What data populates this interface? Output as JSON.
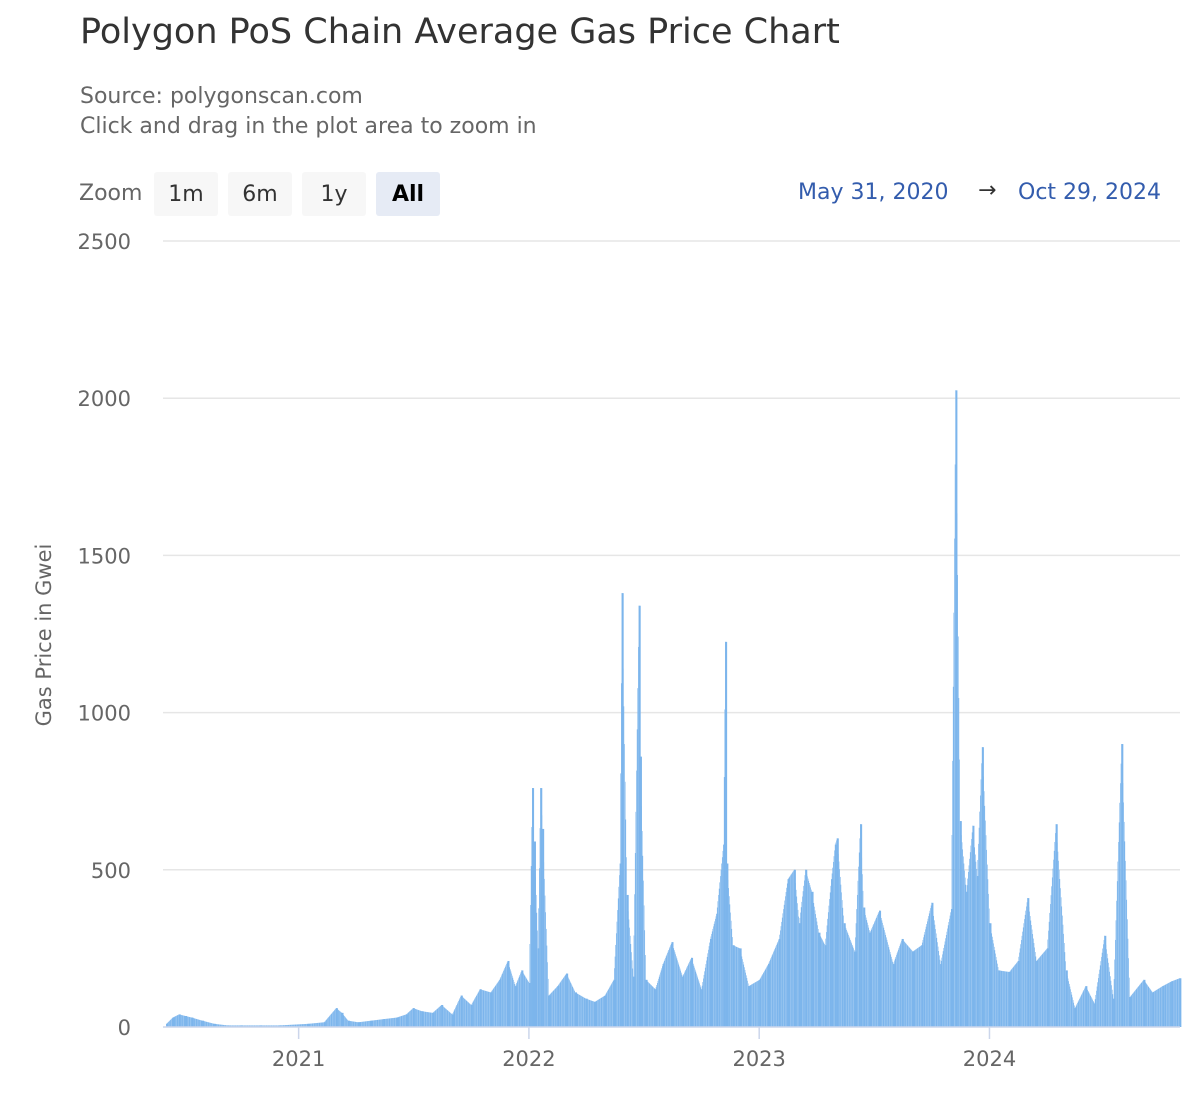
{
  "title": "Polygon PoS Chain Average Gas Price Chart",
  "subtitle": {
    "source": "Source: polygonscan.com",
    "hint": "Click and drag in the plot area to zoom in"
  },
  "range_selector": {
    "label": "Zoom",
    "buttons": [
      "1m",
      "6m",
      "1y",
      "All"
    ],
    "selected": "All",
    "from": "May 31, 2020",
    "arrow": "→",
    "to": "Oct 29, 2024"
  },
  "colors": {
    "bar": "#7cb5ec",
    "grid": "#e6e6e6",
    "axis_text": "#666666",
    "range_text": "#335cad"
  },
  "chart_data": {
    "type": "bar",
    "title": "Polygon PoS Chain Average Gas Price Chart",
    "ylabel": "Gas Price in Gwei",
    "xlabel": "",
    "ylim": [
      0,
      2500
    ],
    "xlim": [
      "2020-05-31",
      "2024-10-29"
    ],
    "y_ticks": [
      0,
      500,
      1000,
      1500,
      2000,
      2500
    ],
    "x_ticks": [
      {
        "label": "2021",
        "date": "2021-01-01"
      },
      {
        "label": "2022",
        "date": "2022-01-01"
      },
      {
        "label": "2023",
        "date": "2023-01-01"
      },
      {
        "label": "2024",
        "date": "2024-01-01"
      }
    ],
    "grid": true,
    "legend": "none",
    "series": [
      {
        "values_note": "daily average gas price",
        "points": [
          [
            "2020-06-05",
            10
          ],
          [
            "2020-06-15",
            30
          ],
          [
            "2020-06-25",
            40
          ],
          [
            "2020-07-05",
            35
          ],
          [
            "2020-07-15",
            30
          ],
          [
            "2020-08-01",
            20
          ],
          [
            "2020-08-20",
            10
          ],
          [
            "2020-09-10",
            5
          ],
          [
            "2020-10-01",
            5
          ],
          [
            "2020-11-01",
            5
          ],
          [
            "2020-12-01",
            5
          ],
          [
            "2021-01-15",
            10
          ],
          [
            "2021-02-10",
            15
          ],
          [
            "2021-03-01",
            60
          ],
          [
            "2021-03-10",
            45
          ],
          [
            "2021-03-20",
            20
          ],
          [
            "2021-04-05",
            15
          ],
          [
            "2021-04-25",
            20
          ],
          [
            "2021-05-15",
            25
          ],
          [
            "2021-06-05",
            30
          ],
          [
            "2021-06-20",
            40
          ],
          [
            "2021-07-01",
            60
          ],
          [
            "2021-07-15",
            50
          ],
          [
            "2021-08-01",
            45
          ],
          [
            "2021-08-15",
            70
          ],
          [
            "2021-09-01",
            40
          ],
          [
            "2021-09-15",
            100
          ],
          [
            "2021-10-01",
            70
          ],
          [
            "2021-10-15",
            120
          ],
          [
            "2021-11-01",
            110
          ],
          [
            "2021-11-15",
            150
          ],
          [
            "2021-11-28",
            210
          ],
          [
            "2021-12-10",
            130
          ],
          [
            "2021-12-20",
            180
          ],
          [
            "2022-01-01",
            140
          ],
          [
            "2022-01-06",
            760
          ],
          [
            "2022-01-09",
            590
          ],
          [
            "2022-01-15",
            250
          ],
          [
            "2022-01-19",
            760
          ],
          [
            "2022-01-22",
            630
          ],
          [
            "2022-02-01",
            100
          ],
          [
            "2022-02-15",
            130
          ],
          [
            "2022-03-01",
            170
          ],
          [
            "2022-03-15",
            110
          ],
          [
            "2022-04-01",
            90
          ],
          [
            "2022-04-15",
            80
          ],
          [
            "2022-05-01",
            100
          ],
          [
            "2022-05-15",
            150
          ],
          [
            "2022-05-25",
            520
          ],
          [
            "2022-05-28",
            1380
          ],
          [
            "2022-06-05",
            420
          ],
          [
            "2022-06-15",
            160
          ],
          [
            "2022-06-24",
            1340
          ],
          [
            "2022-06-26",
            860
          ],
          [
            "2022-07-05",
            150
          ],
          [
            "2022-07-20",
            120
          ],
          [
            "2022-08-01",
            200
          ],
          [
            "2022-08-15",
            270
          ],
          [
            "2022-09-01",
            160
          ],
          [
            "2022-09-15",
            220
          ],
          [
            "2022-10-01",
            120
          ],
          [
            "2022-10-15",
            280
          ],
          [
            "2022-10-25",
            360
          ],
          [
            "2022-11-05",
            580
          ],
          [
            "2022-11-08",
            1225
          ],
          [
            "2022-11-10",
            520
          ],
          [
            "2022-11-20",
            260
          ],
          [
            "2022-12-01",
            250
          ],
          [
            "2022-12-15",
            130
          ],
          [
            "2023-01-01",
            150
          ],
          [
            "2023-01-15",
            200
          ],
          [
            "2023-02-01",
            280
          ],
          [
            "2023-02-15",
            470
          ],
          [
            "2023-02-25",
            500
          ],
          [
            "2023-03-05",
            330
          ],
          [
            "2023-03-15",
            500
          ],
          [
            "2023-03-25",
            430
          ],
          [
            "2023-04-05",
            300
          ],
          [
            "2023-04-15",
            260
          ],
          [
            "2023-04-25",
            470
          ],
          [
            "2023-05-01",
            580
          ],
          [
            "2023-05-04",
            600
          ],
          [
            "2023-05-15",
            330
          ],
          [
            "2023-06-01",
            240
          ],
          [
            "2023-06-10",
            645
          ],
          [
            "2023-06-15",
            380
          ],
          [
            "2023-06-25",
            300
          ],
          [
            "2023-07-10",
            370
          ],
          [
            "2023-08-01",
            200
          ],
          [
            "2023-08-15",
            280
          ],
          [
            "2023-09-01",
            240
          ],
          [
            "2023-09-15",
            260
          ],
          [
            "2023-10-01",
            395
          ],
          [
            "2023-10-15",
            200
          ],
          [
            "2023-11-01",
            375
          ],
          [
            "2023-11-08",
            2025
          ],
          [
            "2023-11-15",
            655
          ],
          [
            "2023-11-25",
            430
          ],
          [
            "2023-12-05",
            640
          ],
          [
            "2023-12-12",
            480
          ],
          [
            "2023-12-20",
            890
          ],
          [
            "2024-01-01",
            330
          ],
          [
            "2024-01-15",
            180
          ],
          [
            "2024-02-01",
            175
          ],
          [
            "2024-02-15",
            210
          ],
          [
            "2024-03-01",
            410
          ],
          [
            "2024-03-15",
            210
          ],
          [
            "2024-04-01",
            250
          ],
          [
            "2024-04-15",
            645
          ],
          [
            "2024-05-01",
            180
          ],
          [
            "2024-05-15",
            60
          ],
          [
            "2024-06-01",
            130
          ],
          [
            "2024-06-15",
            75
          ],
          [
            "2024-07-01",
            290
          ],
          [
            "2024-07-15",
            90
          ],
          [
            "2024-07-28",
            900
          ],
          [
            "2024-08-10",
            95
          ],
          [
            "2024-09-01",
            150
          ],
          [
            "2024-09-15",
            110
          ],
          [
            "2024-10-01",
            130
          ],
          [
            "2024-10-15",
            145
          ],
          [
            "2024-10-28",
            155
          ]
        ]
      }
    ]
  }
}
